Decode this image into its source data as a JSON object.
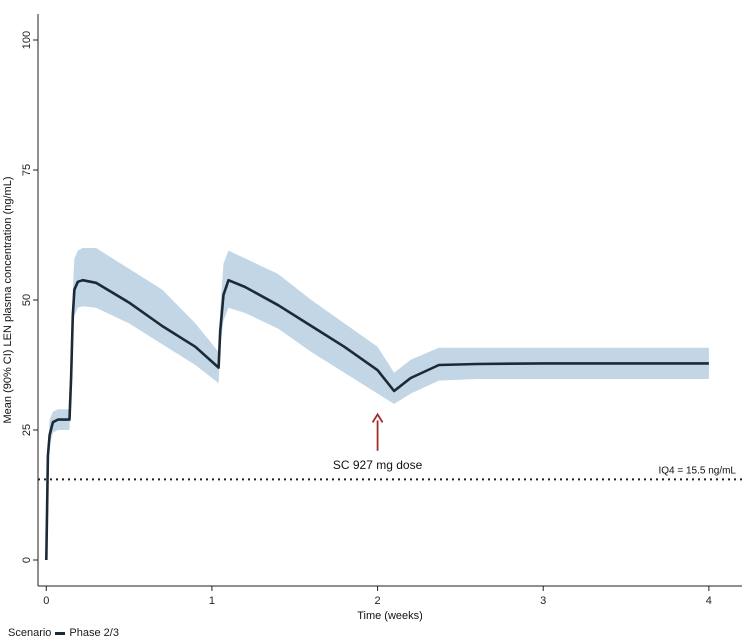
{
  "chart_data": {
    "type": "line",
    "xlabel": "Time (weeks)",
    "ylabel": "Mean (90% CI) LEN plasma concentration (ng/mL)",
    "xlim": [
      -0.05,
      4.2
    ],
    "ylim": [
      -5,
      105
    ],
    "x_ticks": [
      0,
      1,
      2,
      3,
      4
    ],
    "y_ticks": [
      0,
      25,
      50,
      75,
      100
    ],
    "grid": false,
    "series": [
      {
        "name": "Phase 2/3",
        "color": "#1c2a38",
        "band_color": "#c2d6e6",
        "x": [
          0,
          0.005,
          0.01,
          0.02,
          0.04,
          0.07,
          0.1,
          0.14,
          0.15,
          0.16,
          0.17,
          0.19,
          0.22,
          0.3,
          0.5,
          0.7,
          0.9,
          1.04,
          1.05,
          1.07,
          1.1,
          1.2,
          1.4,
          1.6,
          1.8,
          2.0,
          2.1,
          2.2,
          2.37,
          2.6,
          3.0,
          3.5,
          4.0
        ],
        "mean": [
          0,
          10,
          20,
          24,
          26.5,
          27,
          27,
          27,
          35,
          47,
          52,
          53.5,
          53.8,
          53.3,
          49.5,
          45,
          41,
          37,
          44,
          51,
          53.8,
          52.5,
          49,
          45,
          41,
          36.5,
          32.5,
          35,
          37.5,
          37.7,
          37.8,
          37.8,
          37.8
        ],
        "lower": [
          0,
          9,
          18,
          22,
          24.5,
          25,
          25,
          25,
          33,
          44,
          47,
          48.5,
          48.8,
          48.5,
          45.5,
          41.5,
          37.5,
          34,
          41,
          46,
          48.5,
          47.5,
          44.5,
          40,
          36,
          32,
          30,
          32,
          34.5,
          34.8,
          34.8,
          34.8,
          34.8
        ],
        "upper": [
          0,
          11,
          22,
          27,
          28.5,
          29,
          29,
          29,
          38,
          52,
          58,
          59.5,
          60,
          60,
          56,
          52,
          45.5,
          40,
          48,
          57,
          59.5,
          58,
          55,
          50,
          45.5,
          41,
          36,
          38.5,
          40.8,
          40.8,
          40.8,
          40.8,
          40.8
        ]
      }
    ],
    "reference_line": {
      "y": 15.5,
      "label": "IQ4 = 15.5 ng/mL",
      "style": "dotted"
    },
    "annotations": [
      {
        "text": "SC 927 mg dose",
        "arrow_x": 2,
        "arrow_from_y": 21,
        "arrow_to_y": 28,
        "arrow_color": "#a52a2a"
      }
    ],
    "legend": {
      "title": "Scenario",
      "entries": [
        "Phase 2/3"
      ],
      "placement": "bottom-left"
    }
  }
}
